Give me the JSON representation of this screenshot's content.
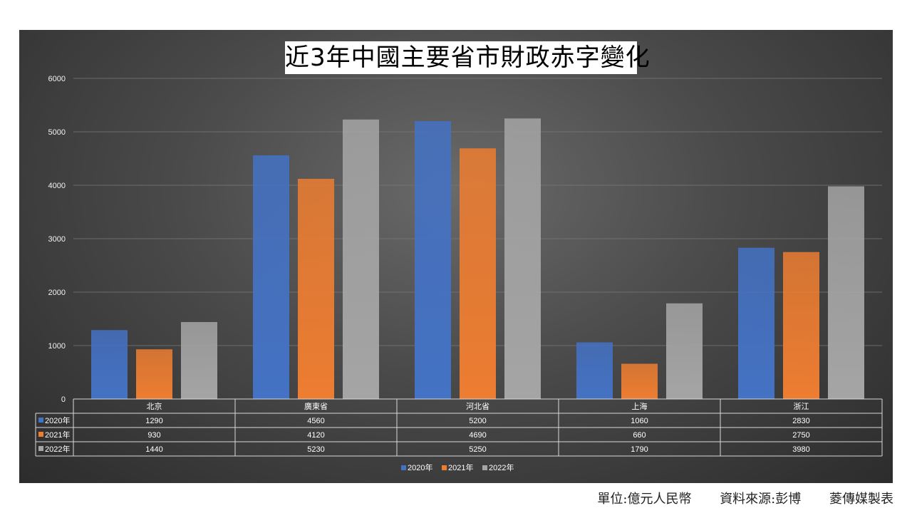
{
  "chart_data": {
    "type": "bar",
    "title": "近3年中國主要省市財政赤字變化",
    "categories": [
      "北京",
      "廣東省",
      "河北省",
      "上海",
      "浙江"
    ],
    "series": [
      {
        "name": "2020年",
        "values": [
          1290,
          4560,
          5200,
          1060,
          2830
        ],
        "color": "#4472c4"
      },
      {
        "name": "2021年",
        "values": [
          930,
          4120,
          4690,
          660,
          2750
        ],
        "color": "#ed7d31"
      },
      {
        "name": "2022年",
        "values": [
          1440,
          5230,
          5250,
          1790,
          3980
        ],
        "color": "#a5a5a5"
      }
    ],
    "yticks": [
      0,
      1000,
      2000,
      3000,
      4000,
      5000,
      6000
    ],
    "ylim": [
      0,
      6000
    ],
    "xlabel": "",
    "ylabel": "",
    "grid": true,
    "legend": "bottom",
    "data_table": true
  },
  "footer": {
    "unit": "單位:億元人民幣",
    "source": "資料來源:彭博",
    "credit": "菱傳媒製表"
  }
}
